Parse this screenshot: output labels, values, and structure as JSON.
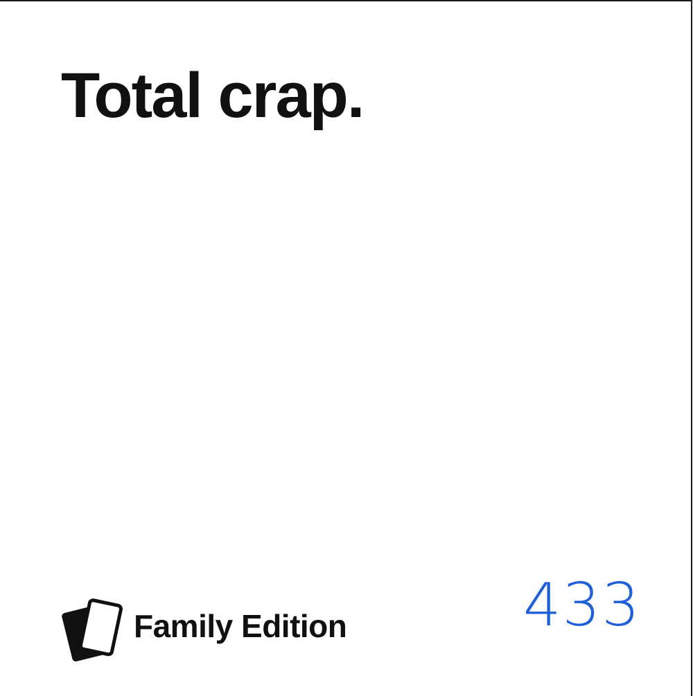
{
  "card": {
    "text": "Total crap.",
    "edition": "Family Edition",
    "number": "433"
  },
  "colors": {
    "text": "#111111",
    "number": "#1f5fd8",
    "background": "#ffffff",
    "border": "#1a1a1a"
  },
  "icons": {
    "logo": "stacked-cards-icon"
  }
}
